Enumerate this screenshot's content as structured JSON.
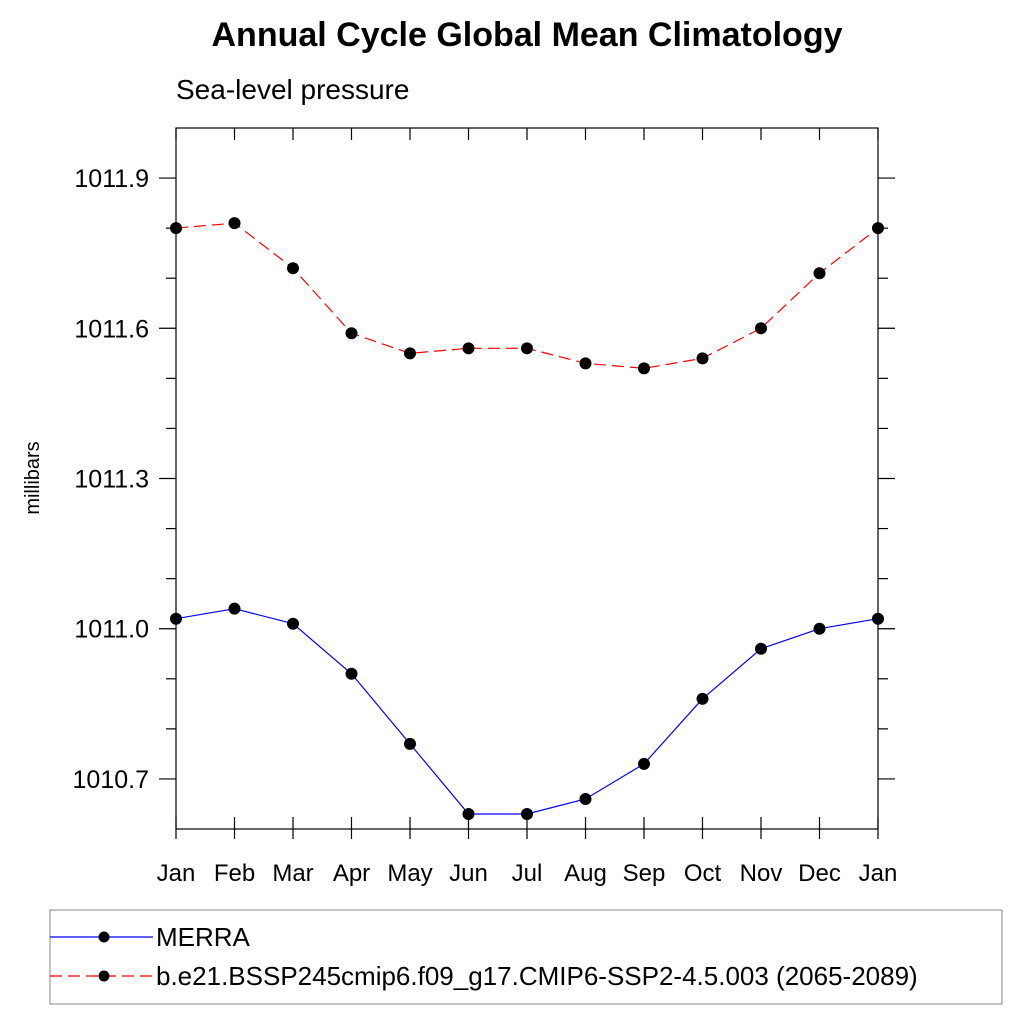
{
  "chart_data": {
    "type": "line",
    "title": "Annual Cycle Global Mean Climatology",
    "subtitle": "Sea-level pressure",
    "xlabel": "",
    "ylabel": "millibars",
    "categories": [
      "Jan",
      "Feb",
      "Mar",
      "Apr",
      "May",
      "Jun",
      "Jul",
      "Aug",
      "Sep",
      "Oct",
      "Nov",
      "Dec",
      "Jan"
    ],
    "ylim": [
      1010.6,
      1012.0
    ],
    "yticks": [
      1010.7,
      1011.0,
      1011.3,
      1011.6,
      1011.9
    ],
    "ytick_labels": [
      "1010.7",
      "1011.0",
      "1011.3",
      "1011.6",
      "1011.9"
    ],
    "grid": false,
    "legend_position": "bottom",
    "series": [
      {
        "name": "MERRA",
        "color": "#0000ff",
        "line_style": "solid",
        "marker": "filled-circle",
        "values": [
          1011.02,
          1011.04,
          1011.01,
          1010.91,
          1010.77,
          1010.63,
          1010.63,
          1010.66,
          1010.73,
          1010.86,
          1010.96,
          1011.0,
          1011.02
        ]
      },
      {
        "name": "b.e21.BSSP245cmip6.f09_g17.CMIP6-SSP2-4.5.003 (2065-2089)",
        "color": "#ff0000",
        "line_style": "dashed",
        "marker": "filled-circle",
        "values": [
          1011.8,
          1011.81,
          1011.72,
          1011.59,
          1011.55,
          1011.56,
          1011.56,
          1011.53,
          1011.52,
          1011.54,
          1011.6,
          1011.71,
          1011.8
        ]
      }
    ]
  }
}
